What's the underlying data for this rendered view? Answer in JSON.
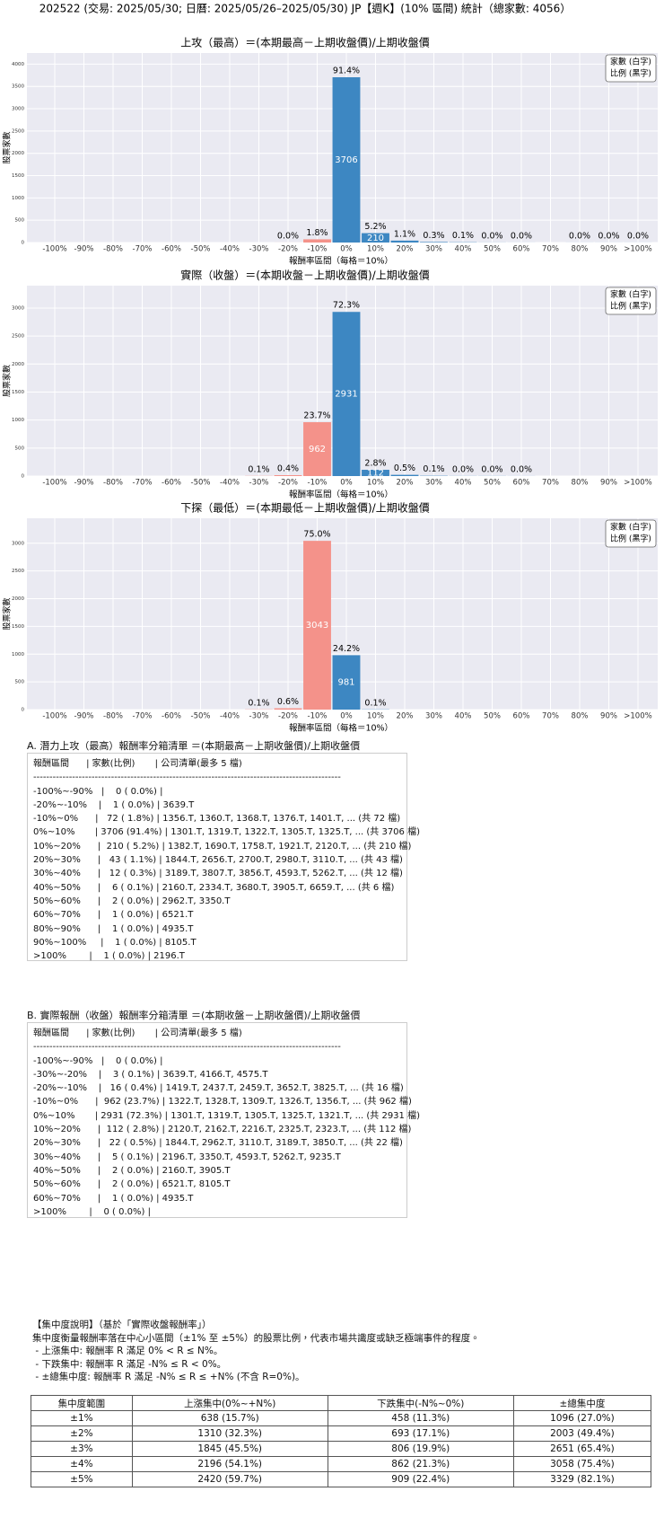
{
  "title": "202522 (交易: 2025/05/30; 日曆: 2025/05/26–2025/05/30) JP【週K】(10% 區間) 統計（總家數: 4056）",
  "chart_data": [
    {
      "type": "bar",
      "title": "上攻（最高）＝(本期最高－上期收盤價)/上期收盤價",
      "x_label": "報酬率區間（每格＝10%）",
      "y_label": "股票家數",
      "categories": [
        "-100%",
        "-90%",
        "-80%",
        "-70%",
        "-60%",
        "-50%",
        "-40%",
        "-30%",
        "-20%",
        "-10%",
        "0%",
        "10%",
        "20%",
        "30%",
        "40%",
        "50%",
        "60%",
        "70%",
        "80%",
        "90%",
        ">100%"
      ],
      "values": [
        0,
        0,
        0,
        0,
        0,
        0,
        0,
        0,
        1,
        72,
        3706,
        210,
        43,
        12,
        6,
        2,
        1,
        0,
        1,
        1,
        1
      ],
      "percent_labels": [
        null,
        null,
        null,
        null,
        null,
        null,
        null,
        null,
        "0.0%",
        "1.8%",
        "91.4%",
        "5.2%",
        "1.1%",
        "0.3%",
        "0.1%",
        "0.0%",
        "0.0%",
        null,
        "0.0%",
        "0.0%",
        "0.0%"
      ],
      "color_negative": "#f4928a",
      "color_positive": "#3d87c2",
      "ylim": [
        0,
        4250
      ],
      "yticks": [
        0,
        500,
        1000,
        1500,
        2000,
        2500,
        3000,
        3500,
        4000
      ],
      "grid": true,
      "legend": [
        "家數 (白字)",
        "比例 (黑字)"
      ],
      "legend_position": "upper right"
    },
    {
      "type": "bar",
      "title": "實際（收盤）＝(本期收盤－上期收盤價)/上期收盤價",
      "x_label": "報酬率區間（每格＝10%）",
      "y_label": "股票家數",
      "categories": [
        "-100%",
        "-90%",
        "-80%",
        "-70%",
        "-60%",
        "-50%",
        "-40%",
        "-30%",
        "-20%",
        "-10%",
        "0%",
        "10%",
        "20%",
        "30%",
        "40%",
        "50%",
        "60%",
        "70%",
        "80%",
        "90%",
        ">100%"
      ],
      "values": [
        0,
        0,
        0,
        0,
        0,
        0,
        0,
        3,
        16,
        962,
        2931,
        112,
        22,
        5,
        2,
        2,
        1,
        0,
        0,
        0,
        0
      ],
      "percent_labels": [
        null,
        null,
        null,
        null,
        null,
        null,
        null,
        "0.1%",
        "0.4%",
        "23.7%",
        "72.3%",
        "2.8%",
        "0.5%",
        "0.1%",
        "0.0%",
        "0.0%",
        "0.0%",
        null,
        null,
        null,
        null
      ],
      "color_negative": "#f4928a",
      "color_positive": "#3d87c2",
      "ylim": [
        0,
        3400
      ],
      "yticks": [
        0,
        500,
        1000,
        1500,
        2000,
        2500,
        3000
      ],
      "grid": true,
      "legend": [
        "家數 (白字)",
        "比例 (黑字)"
      ],
      "legend_position": "upper right"
    },
    {
      "type": "bar",
      "title": "下探（最低）＝(本期最低－上期收盤價)/上期收盤價",
      "x_label": "報酬率區間（每格＝10%）",
      "y_label": "股票家數",
      "categories": [
        "-100%",
        "-90%",
        "-80%",
        "-70%",
        "-60%",
        "-50%",
        "-40%",
        "-30%",
        "-20%",
        "-10%",
        "0%",
        "10%",
        "20%",
        "30%",
        "40%",
        "50%",
        "60%",
        "70%",
        "80%",
        "90%",
        ">100%"
      ],
      "values": [
        0,
        0,
        0,
        0,
        0,
        0,
        0,
        4,
        24,
        3043,
        981,
        4,
        0,
        0,
        0,
        0,
        0,
        0,
        0,
        0,
        0
      ],
      "percent_labels": [
        null,
        null,
        null,
        null,
        null,
        null,
        null,
        "0.1%",
        "0.6%",
        "75.0%",
        "24.2%",
        "0.1%",
        null,
        null,
        null,
        null,
        null,
        null,
        null,
        null,
        null
      ],
      "color_negative": "#f4928a",
      "color_positive": "#3d87c2",
      "ylim": [
        0,
        3450
      ],
      "yticks": [
        0,
        500,
        1000,
        1500,
        2000,
        2500,
        3000
      ],
      "grid": true,
      "legend": [
        "家數 (白字)",
        "比例 (黑字)"
      ],
      "legend_position": "upper right"
    }
  ],
  "list_a": {
    "title": "A. 潛力上攻（最高）報酬率分箱清單 ＝(本期最高－上期收盤價)/上期收盤價",
    "lines": [
      "報酬區間      | 家數(比例)       | 公司清單(最多 5 檔)",
      "-----------------------------------------------------------------------------------------------",
      "-100%~-90%   |    0 ( 0.0%) |",
      "-20%~-10%    |    1 ( 0.0%) | 3639.T",
      "-10%~0%      |   72 ( 1.8%) | 1356.T, 1360.T, 1368.T, 1376.T, 1401.T, ... (共 72 檔)",
      "0%~10%       | 3706 (91.4%) | 1301.T, 1319.T, 1322.T, 1305.T, 1325.T, ... (共 3706 檔)",
      "10%~20%      |  210 ( 5.2%) | 1382.T, 1690.T, 1758.T, 1921.T, 2120.T, ... (共 210 檔)",
      "20%~30%      |   43 ( 1.1%) | 1844.T, 2656.T, 2700.T, 2980.T, 3110.T, ... (共 43 檔)",
      "30%~40%      |   12 ( 0.3%) | 3189.T, 3807.T, 3856.T, 4593.T, 5262.T, ... (共 12 檔)",
      "40%~50%      |    6 ( 0.1%) | 2160.T, 2334.T, 3680.T, 3905.T, 6659.T, ... (共 6 檔)",
      "50%~60%      |    2 ( 0.0%) | 2962.T, 3350.T",
      "60%~70%      |    1 ( 0.0%) | 6521.T",
      "80%~90%      |    1 ( 0.0%) | 4935.T",
      "90%~100%     |    1 ( 0.0%) | 8105.T",
      ">100%        |    1 ( 0.0%) | 2196.T"
    ]
  },
  "list_b": {
    "title": "B. 實際報酬（收盤）報酬率分箱清單 ＝(本期收盤－上期收盤價)/上期收盤價",
    "lines": [
      "報酬區間      | 家數(比例)       | 公司清單(最多 5 檔)",
      "-----------------------------------------------------------------------------------------------",
      "-100%~-90%   |    0 ( 0.0%) |",
      "-30%~-20%    |    3 ( 0.1%) | 3639.T, 4166.T, 4575.T",
      "-20%~-10%    |   16 ( 0.4%) | 1419.T, 2437.T, 2459.T, 3652.T, 3825.T, ... (共 16 檔)",
      "-10%~0%      |  962 (23.7%) | 1322.T, 1328.T, 1309.T, 1326.T, 1356.T, ... (共 962 檔)",
      "0%~10%       | 2931 (72.3%) | 1301.T, 1319.T, 1305.T, 1325.T, 1321.T, ... (共 2931 檔)",
      "10%~20%      |  112 ( 2.8%) | 2120.T, 2162.T, 2216.T, 2325.T, 2323.T, ... (共 112 檔)",
      "20%~30%      |   22 ( 0.5%) | 1844.T, 2962.T, 3110.T, 3189.T, 3850.T, ... (共 22 檔)",
      "30%~40%      |    5 ( 0.1%) | 2196.T, 3350.T, 4593.T, 5262.T, 9235.T",
      "40%~50%      |    2 ( 0.0%) | 2160.T, 3905.T",
      "50%~60%      |    2 ( 0.0%) | 6521.T, 8105.T",
      "60%~70%      |    1 ( 0.0%) | 4935.T",
      ">100%        |    0 ( 0.0%) |"
    ]
  },
  "concentration": {
    "title": "【集中度說明】（基於「實際收盤報酬率」）",
    "lines": [
      "集中度衡量報酬率落在中心小區間（±1% 至 ±5%）的股票比例，代表市場共識度或缺乏極端事件的程度。",
      " - 上漲集中: 報酬率 R 滿足 0% < R ≤ N%。",
      " - 下跌集中: 報酬率 R 滿足 -N% ≤ R < 0%。",
      " - ±總集中度: 報酬率 R 滿足 -N% ≤ R ≤ +N% (不含 R=0%)。"
    ],
    "table": {
      "header": [
        "集中度範圍",
        "上漲集中(0%~+N%)",
        "下跌集中(-N%~0%)",
        "±總集中度"
      ],
      "rows": [
        [
          "±1%",
          "638 (15.7%)",
          "458 (11.3%)",
          "1096 (27.0%)"
        ],
        [
          "±2%",
          "1310 (32.3%)",
          "693 (17.1%)",
          "2003 (49.4%)"
        ],
        [
          "±3%",
          "1845 (45.5%)",
          "806 (19.9%)",
          "2651 (65.4%)"
        ],
        [
          "±4%",
          "2196 (54.1%)",
          "862 (21.3%)",
          "3058 (75.4%)"
        ],
        [
          "±5%",
          "2420 (59.7%)",
          "909 (22.4%)",
          "3329 (82.1%)"
        ]
      ]
    }
  }
}
